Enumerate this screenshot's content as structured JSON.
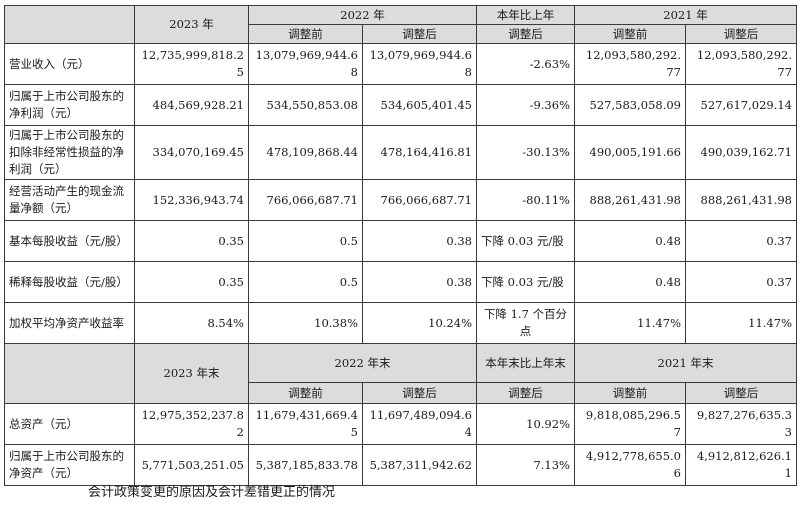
{
  "headers": {
    "y2023": "2023 年",
    "y2022": "2022 年",
    "change": "本年比上年",
    "y2021": "2021 年",
    "before": "调整前",
    "after": "调整后"
  },
  "rows": [
    {
      "label": "营业收入（元）",
      "v2023": "12,735,999,818.25",
      "v2022_before": "13,079,969,944.68",
      "v2022_after": "13,079,969,944.68",
      "change": "-2.63%",
      "v2021_before": "12,093,580,292.77",
      "v2021_after": "12,093,580,292.77"
    },
    {
      "label": "归属于上市公司股东的净利润（元）",
      "v2023": "484,569,928.21",
      "v2022_before": "534,550,853.08",
      "v2022_after": "534,605,401.45",
      "change": "-9.36%",
      "v2021_before": "527,583,058.09",
      "v2021_after": "527,617,029.14"
    },
    {
      "label": "归属于上市公司股东的扣除非经常性损益的净利润（元）",
      "v2023": "334,070,169.45",
      "v2022_before": "478,109,868.44",
      "v2022_after": "478,164,416.81",
      "change": "-30.13%",
      "v2021_before": "490,005,191.66",
      "v2021_after": "490,039,162.71"
    },
    {
      "label": "经营活动产生的现金流量净额（元）",
      "v2023": "152,336,943.74",
      "v2022_before": "766,066,687.71",
      "v2022_after": "766,066,687.71",
      "change": "-80.11%",
      "v2021_before": "888,261,431.98",
      "v2021_after": "888,261,431.98"
    },
    {
      "label": "基本每股收益（元/股）",
      "v2023": "0.35",
      "v2022_before": "0.5",
      "v2022_after": "0.38",
      "change": "下降 0.03 元/股",
      "v2021_before": "0.48",
      "v2021_after": "0.37"
    },
    {
      "label": "稀释每股收益（元/股）",
      "v2023": "0.35",
      "v2022_before": "0.5",
      "v2022_after": "0.38",
      "change": "下降 0.03 元/股",
      "v2021_before": "0.48",
      "v2021_after": "0.37"
    },
    {
      "label": "加权平均净资产收益率",
      "v2023": "8.54%",
      "v2022_before": "10.38%",
      "v2022_after": "10.24%",
      "change": "下降 1.7 个百分点",
      "v2021_before": "11.47%",
      "v2021_after": "11.47%"
    }
  ],
  "headers2": {
    "y2023": "2023 年末",
    "y2022": "2022 年末",
    "change": "本年末比上年末",
    "y2021": "2021 年末",
    "before": "调整前",
    "after": "调整后"
  },
  "rows2": [
    {
      "label": "总资产（元）",
      "v2023": "12,975,352,237.82",
      "v2022_before": "11,679,431,669.45",
      "v2022_after": "11,697,489,094.64",
      "change": "10.92%",
      "v2021_before": "9,818,085,296.57",
      "v2021_after": "9,827,276,635.33"
    },
    {
      "label": "归属于上市公司股东的净资产（元）",
      "v2023": "5,771,503,251.05",
      "v2022_before": "5,387,185,833.78",
      "v2022_after": "5,387,311,942.62",
      "change": "7.13%",
      "v2021_before": "4,912,778,655.06",
      "v2021_after": "4,912,812,626.11"
    }
  ],
  "footer": "会计政策变更的原因及会计差错更正的情况"
}
